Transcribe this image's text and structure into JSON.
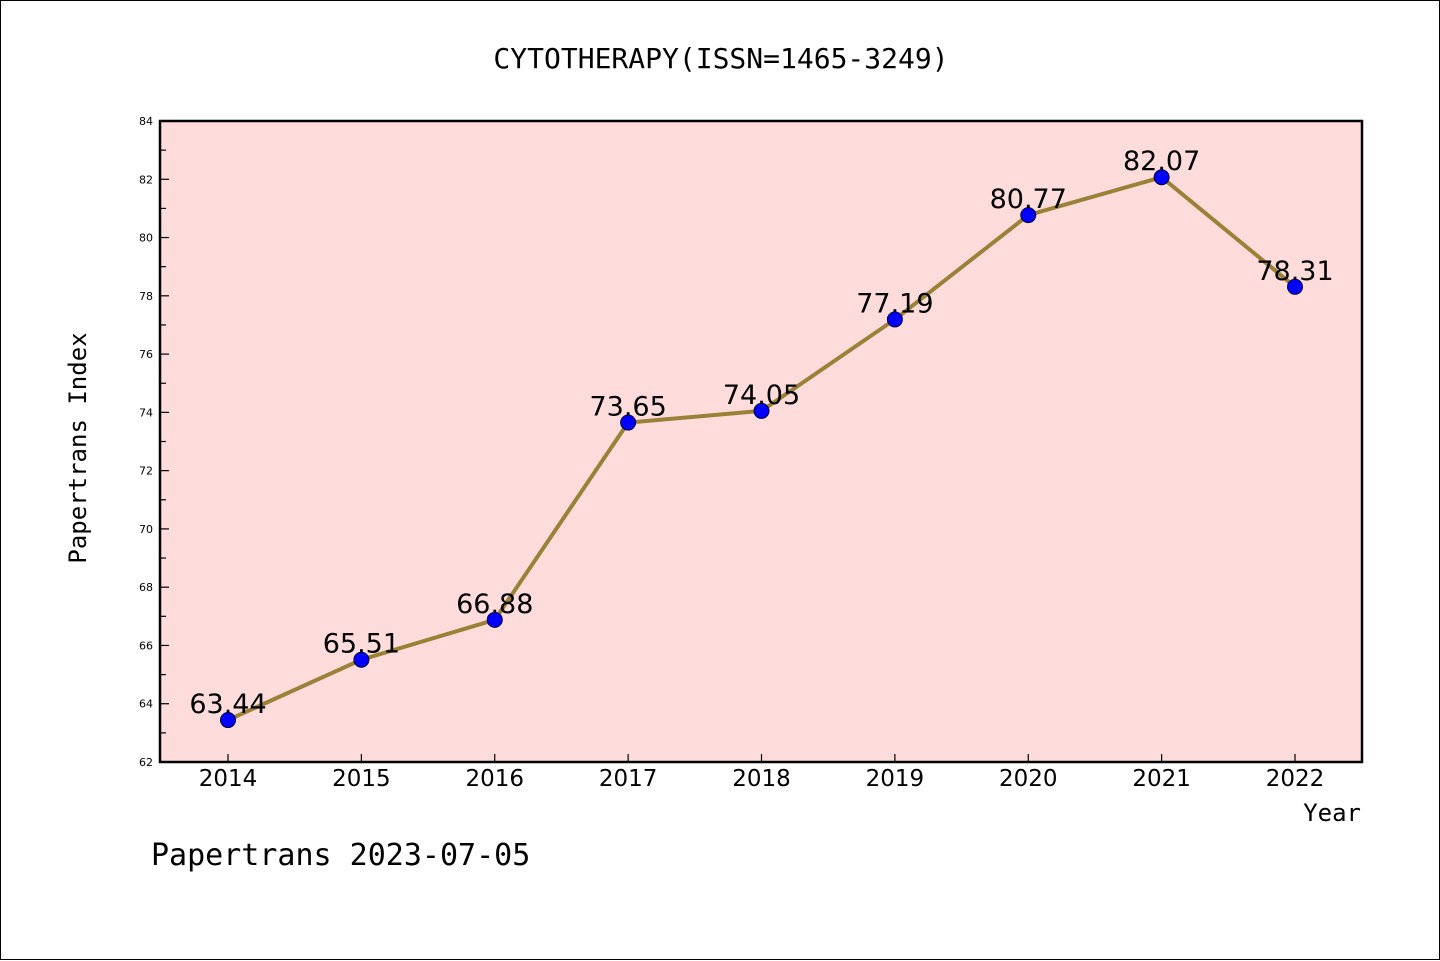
{
  "chart_data": {
    "type": "line",
    "title": "CYTOTHERAPY(ISSN=1465-3249)",
    "xlabel": "Year",
    "ylabel": "Papertrans Index",
    "footer": "Papertrans 2023-07-05",
    "categories": [
      "2014",
      "2015",
      "2016",
      "2017",
      "2018",
      "2019",
      "2020",
      "2021",
      "2022"
    ],
    "values": [
      63.44,
      65.51,
      66.88,
      73.65,
      74.05,
      77.19,
      80.77,
      82.07,
      78.31
    ],
    "value_labels": [
      "63.44",
      "65.51",
      "66.88",
      "73.65",
      "74.05",
      "77.19",
      "80.77",
      "82.07",
      "78.31"
    ],
    "ylim": [
      62,
      84
    ],
    "yticks": [
      "62",
      "64",
      "66",
      "68",
      "70",
      "72",
      "74",
      "76",
      "78",
      "80",
      "82",
      "84"
    ],
    "grid": false,
    "legend": "none",
    "colors": {
      "plot_background": "#ffdcdc",
      "line": "#9b8137",
      "marker": "#0000ff",
      "axis": "#000000"
    }
  }
}
